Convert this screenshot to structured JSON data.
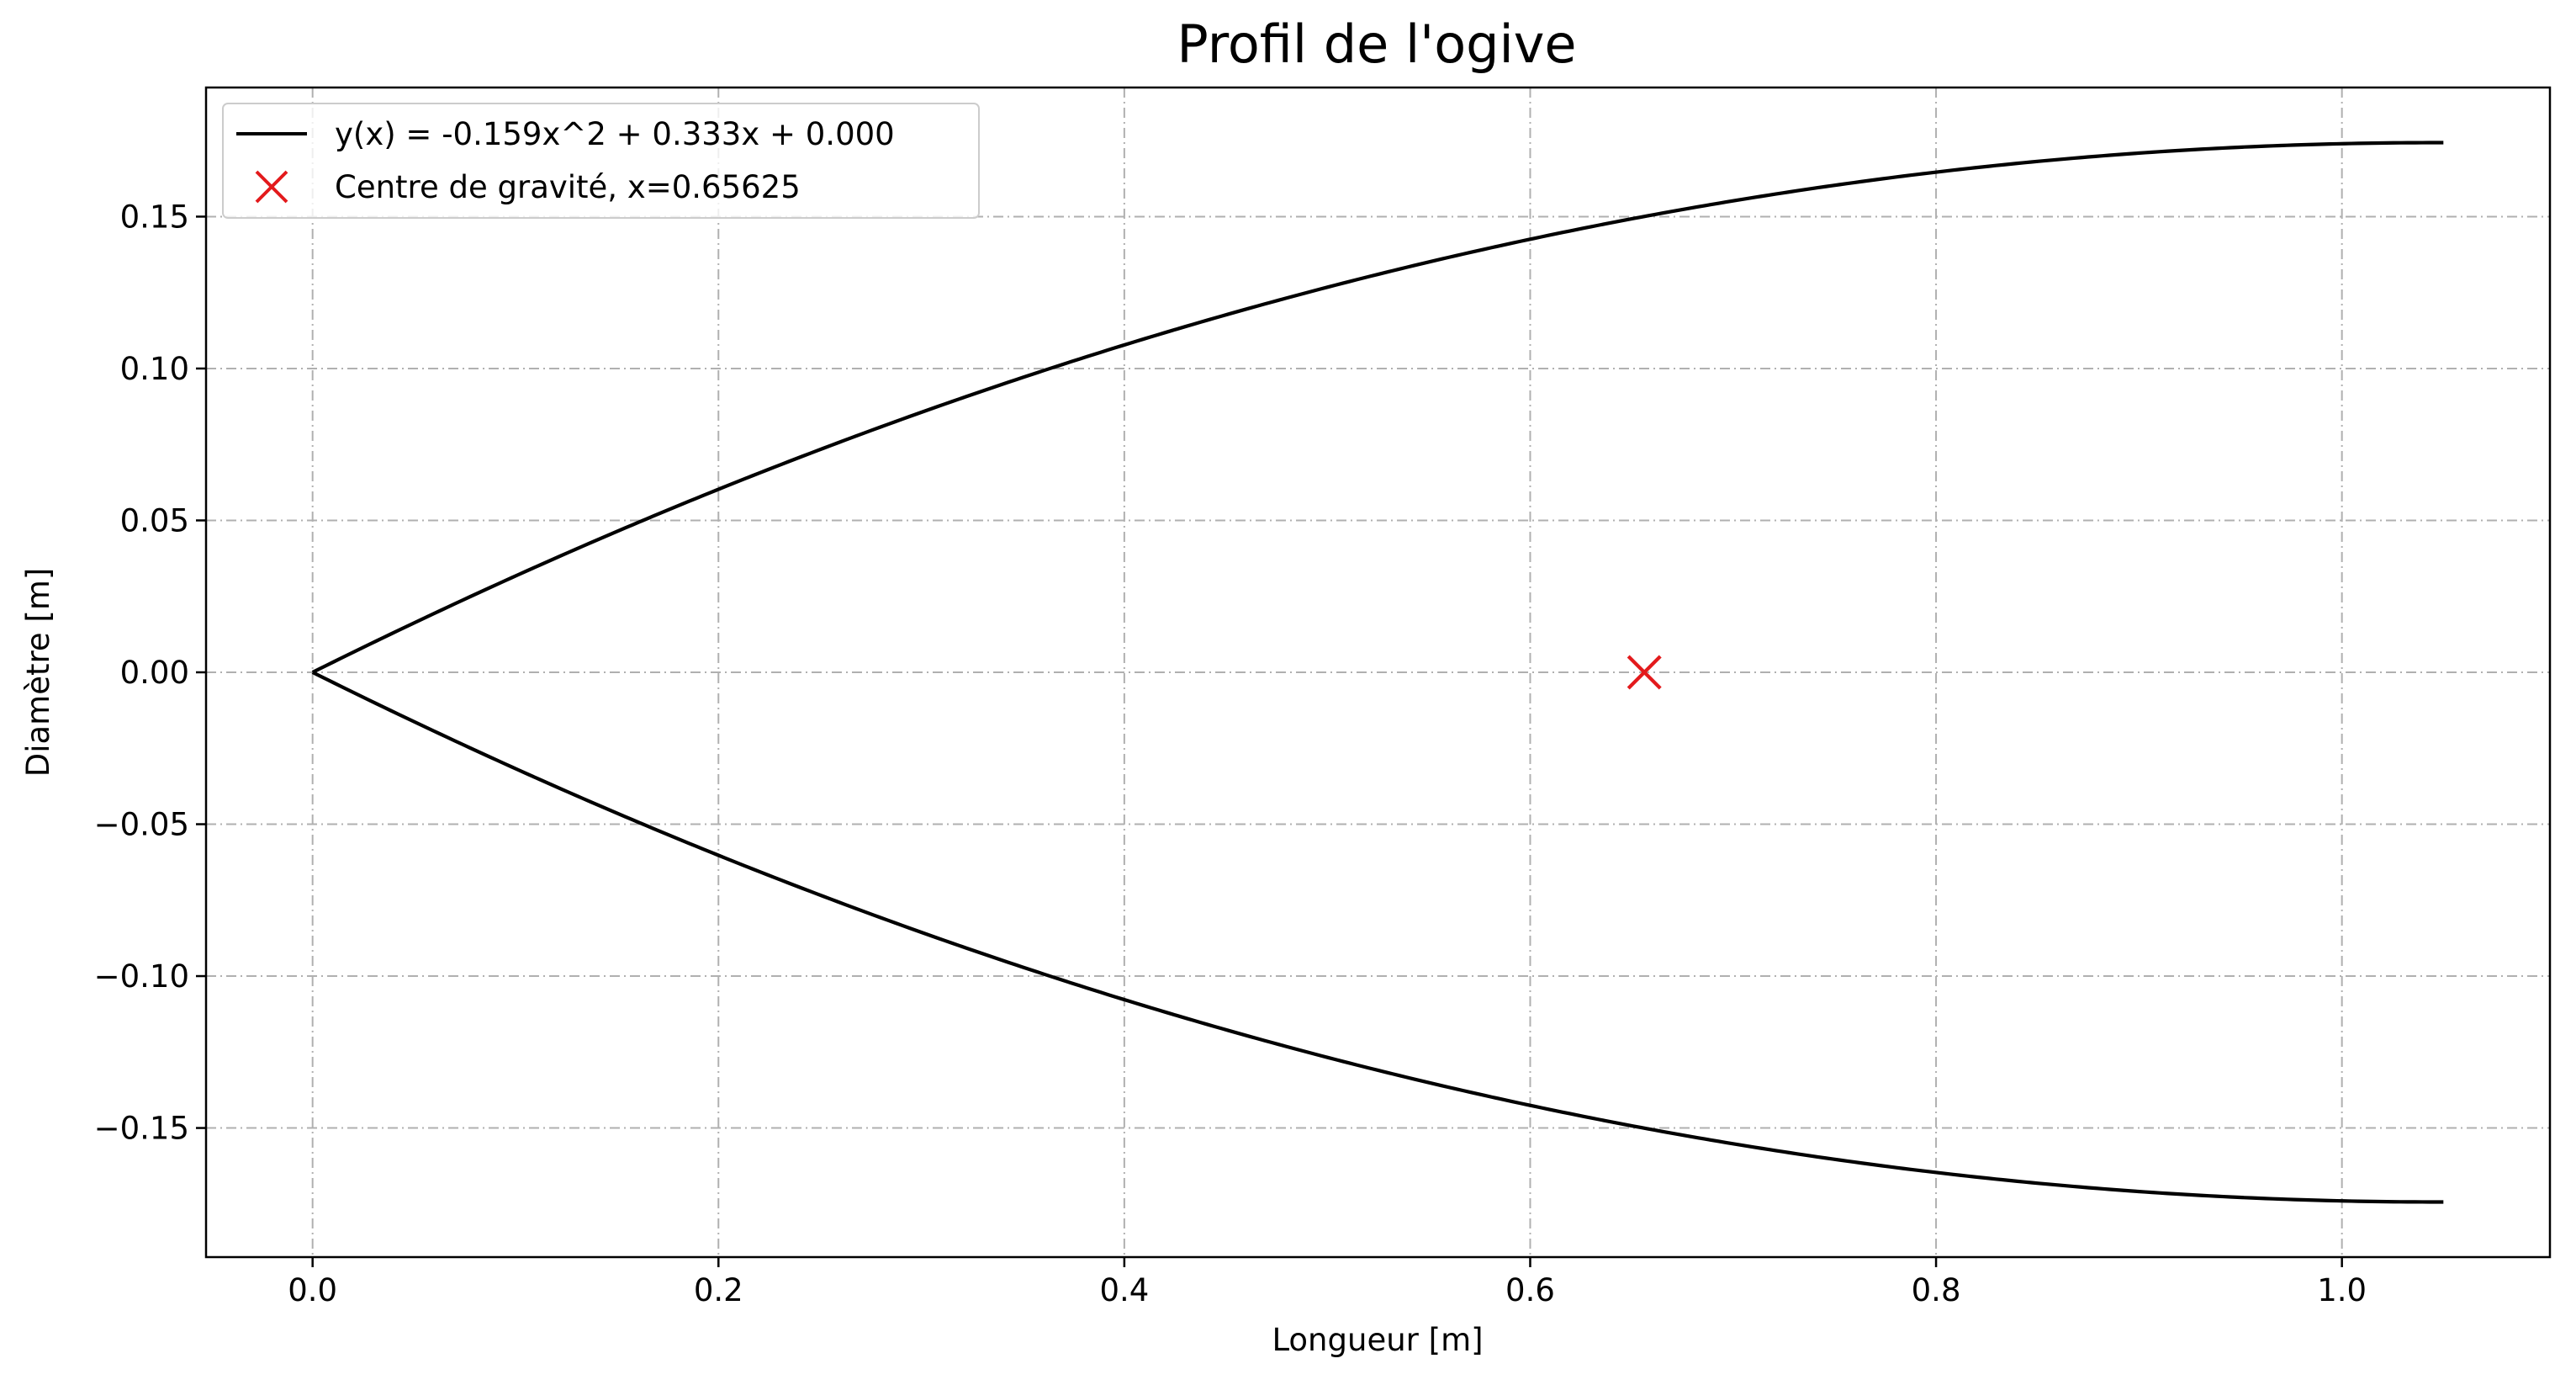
{
  "chart_data": {
    "type": "line",
    "title": "Profil de l'ogive",
    "xlabel": "Longueur [m]",
    "ylabel": "Diamètre [m]",
    "xlim": [
      -0.0525,
      1.1025
    ],
    "ylim": [
      -0.1925,
      0.1925
    ],
    "xticks": [
      0.0,
      0.2,
      0.4,
      0.6,
      0.8,
      1.0
    ],
    "xtick_labels": [
      "0.0",
      "0.2",
      "0.4",
      "0.6",
      "0.8",
      "1.0"
    ],
    "yticks": [
      -0.15,
      -0.1,
      -0.05,
      0.0,
      0.05,
      0.1,
      0.15
    ],
    "ytick_labels": [
      "−0.15",
      "−0.10",
      "−0.05",
      "0.00",
      "0.05",
      "0.10",
      "0.15"
    ],
    "grid": true,
    "legend_position": "upper-left",
    "curve": {
      "name": "y(x) = -0.159x^2 + 0.333x + 0.000",
      "coefficients": [
        -0.159,
        0.333,
        0.0
      ],
      "x_range": [
        0.0,
        1.05
      ],
      "mirrored": true,
      "color": "#000000"
    },
    "marker": {
      "name": "Centre de gravité, x=0.65625",
      "x": 0.65625,
      "y": 0.0,
      "symbol": "x",
      "color": "#e31a1c"
    }
  }
}
